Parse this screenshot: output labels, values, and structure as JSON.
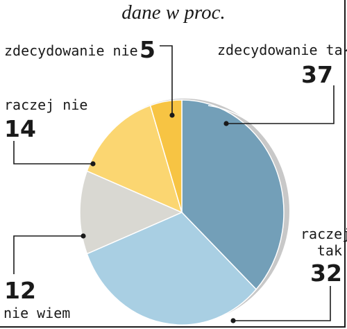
{
  "chart_data": {
    "type": "pie",
    "subtitle": "dane w proc.",
    "slices": [
      {
        "label": "zdecydowanie tak",
        "value": 37,
        "color": "#739fb8"
      },
      {
        "label": "raczej tak",
        "value": 32,
        "color": "#a9cfe3"
      },
      {
        "label": "nie wiem",
        "value": 12,
        "color": "#d9d8d2"
      },
      {
        "label": "raczej nie",
        "value": 14,
        "color": "#fbd671"
      },
      {
        "label": "zdecydowanie nie",
        "value": 5,
        "color": "#f7c443"
      }
    ]
  }
}
